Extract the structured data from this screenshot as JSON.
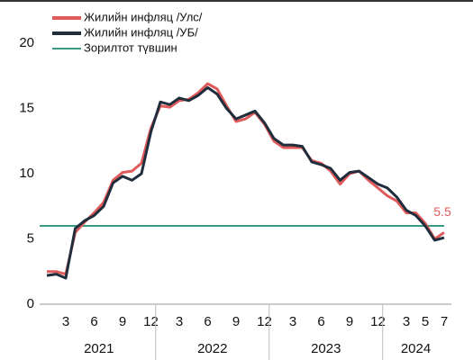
{
  "chart_data": {
    "type": "line",
    "categories": [
      null,
      null,
      "3",
      null,
      null,
      "6",
      null,
      null,
      "9",
      null,
      null,
      "12",
      null,
      null,
      "3",
      null,
      null,
      "6",
      null,
      null,
      "9",
      null,
      null,
      "12",
      null,
      null,
      "3",
      null,
      null,
      "6",
      null,
      null,
      "9",
      null,
      null,
      "12",
      null,
      null,
      "3",
      null,
      "5",
      null,
      "7"
    ],
    "year_groups": [
      {
        "label": "2021",
        "months": 12
      },
      {
        "label": "2022",
        "months": 12
      },
      {
        "label": "2023",
        "months": 12
      },
      {
        "label": "2024",
        "months": 7
      }
    ],
    "series": [
      {
        "name": "Жилийн инфляц /Улс/",
        "color": "#e05a5a",
        "values": [
          2.5,
          2.5,
          2.3,
          5.5,
          6.3,
          7.0,
          7.8,
          9.5,
          10.1,
          10.2,
          10.8,
          13.5,
          15.2,
          15.1,
          15.6,
          15.7,
          16.2,
          16.9,
          16.5,
          15.2,
          14.0,
          14.2,
          14.7,
          13.8,
          12.5,
          12.0,
          12.0,
          12.0,
          11.0,
          10.8,
          10.2,
          9.2,
          10.0,
          10.2,
          9.5,
          8.9,
          8.3,
          7.9,
          7.0,
          7.0,
          6.2,
          5.0,
          5.5
        ],
        "value_labels": [
          null,
          null,
          null,
          null,
          null,
          null,
          null,
          null,
          null,
          null,
          null,
          null,
          null,
          null,
          null,
          null,
          null,
          null,
          null,
          null,
          null,
          null,
          null,
          null,
          null,
          null,
          null,
          null,
          null,
          null,
          null,
          null,
          null,
          null,
          null,
          null,
          null,
          null,
          null,
          null,
          null,
          null,
          "5.5"
        ]
      },
      {
        "name": "Жилийн инфляц /УБ/",
        "color": "#1f2d3d",
        "values": [
          2.2,
          2.3,
          2.0,
          5.8,
          6.4,
          6.8,
          7.5,
          9.3,
          9.8,
          9.5,
          10.0,
          13.2,
          15.5,
          15.3,
          15.8,
          15.6,
          16.0,
          16.6,
          16.1,
          15.0,
          14.2,
          14.5,
          14.8,
          13.9,
          12.7,
          12.2,
          12.2,
          12.1,
          10.9,
          10.7,
          10.4,
          9.5,
          10.1,
          10.2,
          9.7,
          9.2,
          8.9,
          8.2,
          7.2,
          6.8,
          6.0,
          4.9,
          5.1
        ]
      }
    ],
    "target": {
      "name": "Зорилтот түвшин",
      "color": "#3a9a86",
      "value": 6
    },
    "ylim": [
      0,
      20
    ],
    "yticks": [
      0,
      5,
      10,
      15,
      20
    ]
  }
}
